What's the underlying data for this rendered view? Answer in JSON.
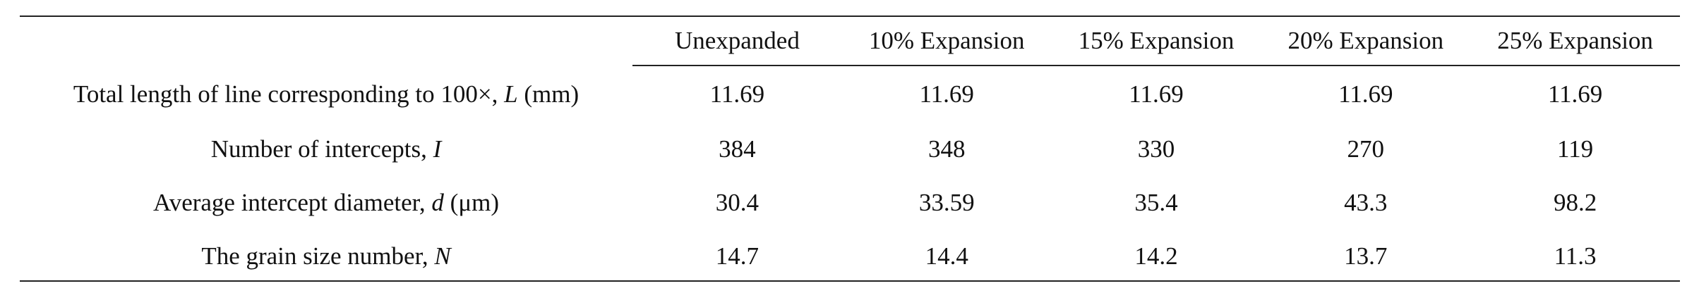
{
  "table": {
    "header": {
      "corner": "",
      "columns": [
        "Unexpanded",
        "10% Expansion",
        "15% Expansion",
        "20% Expansion",
        "25% Expansion"
      ]
    },
    "rows": [
      {
        "label_prefix": "Total length of line corresponding to 100×, ",
        "label_var": "L",
        "label_suffix": " (mm)",
        "values": [
          "11.69",
          "11.69",
          "11.69",
          "11.69",
          "11.69"
        ]
      },
      {
        "label_prefix": "Number of intercepts, ",
        "label_var": "I",
        "label_suffix": "",
        "values": [
          "384",
          "348",
          "330",
          "270",
          "119"
        ]
      },
      {
        "label_prefix": "Average intercept diameter, ",
        "label_var": "d",
        "label_suffix": " (μm)",
        "values": [
          "30.4",
          "33.59",
          "35.4",
          "43.3",
          "98.2"
        ]
      },
      {
        "label_prefix": "The grain size number, ",
        "label_var": "N",
        "label_suffix": "",
        "values": [
          "14.7",
          "14.4",
          "14.2",
          "13.7",
          "11.3"
        ]
      }
    ]
  }
}
